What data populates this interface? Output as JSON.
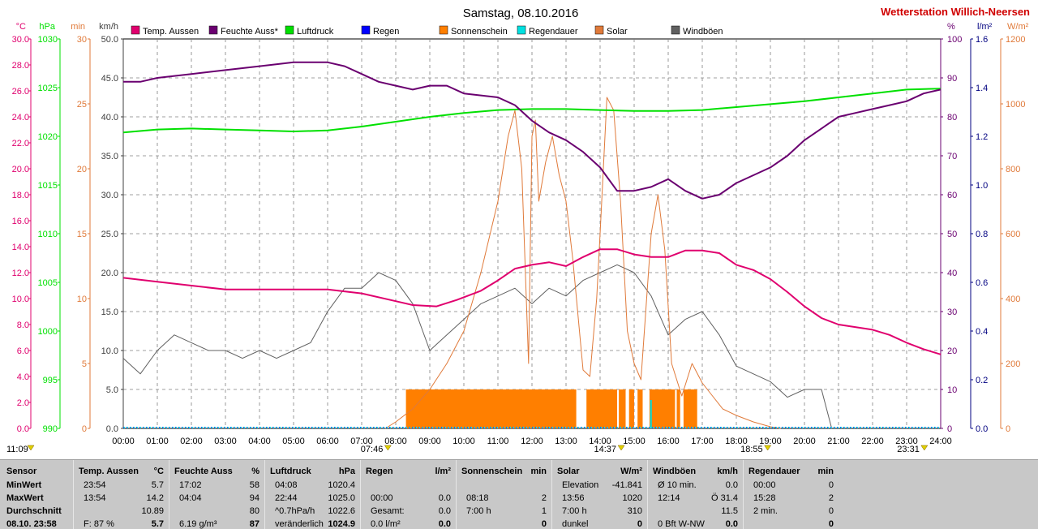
{
  "header": {
    "title": "Samstag, 08.10.2016",
    "station": "Wetterstation Willich-Neersen"
  },
  "colors": {
    "temp": "#e0006e",
    "humidity": "#6a0070",
    "pressure": "#00e000",
    "rain": "#0000ff",
    "sunshine": "#ff7f00",
    "raintime": "#00e0e0",
    "solar": "#e07a3a",
    "gust": "#606060",
    "grid": "#808080",
    "table_bg": "#c8c8c8"
  },
  "chart_data": {
    "type": "line",
    "x_range": [
      "00:00",
      "24:00"
    ],
    "x_ticks": [
      "00:00",
      "01:00",
      "02:00",
      "03:00",
      "04:00",
      "05:00",
      "06:00",
      "07:00",
      "08:00",
      "09:00",
      "10:00",
      "11:00",
      "12:00",
      "13:00",
      "14:00",
      "15:00",
      "16:00",
      "17:00",
      "18:00",
      "19:00",
      "20:00",
      "21:00",
      "22:00",
      "23:00",
      "24:00"
    ],
    "axes_left": [
      {
        "unit": "°C",
        "min": 0,
        "max": 30,
        "ticks": [
          "30.0",
          "28.0",
          "26.0",
          "24.0",
          "22.0",
          "20.0",
          "18.0",
          "16.0",
          "14.0",
          "12.0",
          "10.0",
          "8.0",
          "6.0",
          "4.0",
          "2.0",
          "0.0"
        ]
      },
      {
        "unit": "hPa",
        "min": 990,
        "max": 1030,
        "ticks": [
          "1030",
          "1025",
          "1020",
          "1015",
          "1010",
          "1005",
          "1000",
          "995",
          "990"
        ]
      },
      {
        "unit": "min",
        "min": 0,
        "max": 30,
        "ticks": [
          "30",
          "25",
          "20",
          "15",
          "10",
          "5",
          "0"
        ]
      },
      {
        "unit": "km/h",
        "min": 0,
        "max": 50,
        "ticks": [
          "50.0",
          "45.0",
          "40.0",
          "35.0",
          "30.0",
          "25.0",
          "20.0",
          "15.0",
          "10.0",
          "5.0",
          "0.0"
        ]
      }
    ],
    "axes_right": [
      {
        "unit": "%",
        "min": 0,
        "max": 100,
        "ticks": [
          "100",
          "90",
          "80",
          "70",
          "60",
          "50",
          "40",
          "30",
          "20",
          "10",
          "0"
        ]
      },
      {
        "unit": "l/m²",
        "min": 0,
        "max": 1.6,
        "ticks": [
          "1.6",
          "1.4",
          "1.2",
          "1.0",
          "0.8",
          "0.6",
          "0.4",
          "0.2",
          "0.0"
        ]
      },
      {
        "unit": "W/m²",
        "min": 0,
        "max": 1200,
        "ticks": [
          "1200",
          "1000",
          "800",
          "600",
          "400",
          "200",
          "0"
        ]
      }
    ],
    "legend": [
      "Temp. Aussen",
      "Feuchte Auss*",
      "Luftdruck",
      "Regen",
      "Sonnenschein",
      "Regendauer",
      "Solar",
      "Windböen"
    ],
    "series": [
      {
        "name": "Temp. Aussen",
        "unit": "°C",
        "points": [
          [
            0,
            11.6
          ],
          [
            1,
            11.3
          ],
          [
            2,
            11.0
          ],
          [
            3,
            10.7
          ],
          [
            4,
            10.7
          ],
          [
            5,
            10.7
          ],
          [
            6,
            10.7
          ],
          [
            7,
            10.4
          ],
          [
            8,
            9.8
          ],
          [
            8.5,
            9.5
          ],
          [
            9.2,
            9.4
          ],
          [
            9.8,
            9.9
          ],
          [
            10.5,
            10.6
          ],
          [
            11,
            11.4
          ],
          [
            11.5,
            12.3
          ],
          [
            12,
            12.6
          ],
          [
            12.5,
            12.8
          ],
          [
            13,
            12.5
          ],
          [
            13.5,
            13.2
          ],
          [
            14,
            13.8
          ],
          [
            14.5,
            13.8
          ],
          [
            15,
            13.4
          ],
          [
            15.5,
            13.2
          ],
          [
            16,
            13.2
          ],
          [
            16.5,
            13.7
          ],
          [
            17,
            13.7
          ],
          [
            17.5,
            13.5
          ],
          [
            18,
            12.6
          ],
          [
            18.5,
            12.2
          ],
          [
            19,
            11.5
          ],
          [
            19.5,
            10.5
          ],
          [
            20,
            9.4
          ],
          [
            20.5,
            8.5
          ],
          [
            21,
            8.0
          ],
          [
            22,
            7.6
          ],
          [
            22.5,
            7.2
          ],
          [
            23,
            6.6
          ],
          [
            23.5,
            6.1
          ],
          [
            24,
            5.7
          ]
        ]
      },
      {
        "name": "Feuchte Auss*",
        "unit": "%",
        "points": [
          [
            0,
            89
          ],
          [
            0.5,
            89
          ],
          [
            1,
            90
          ],
          [
            2,
            91
          ],
          [
            3,
            92
          ],
          [
            4,
            93
          ],
          [
            5,
            94
          ],
          [
            6,
            94
          ],
          [
            6.5,
            93
          ],
          [
            7,
            91
          ],
          [
            7.5,
            89
          ],
          [
            8,
            88
          ],
          [
            8.5,
            87
          ],
          [
            9,
            88
          ],
          [
            9.5,
            88
          ],
          [
            10,
            86
          ],
          [
            11,
            85
          ],
          [
            11.5,
            83
          ],
          [
            12,
            79
          ],
          [
            12.5,
            76
          ],
          [
            13,
            74
          ],
          [
            13.5,
            71
          ],
          [
            14,
            67
          ],
          [
            14.5,
            61
          ],
          [
            15,
            61
          ],
          [
            15.5,
            62
          ],
          [
            16,
            64
          ],
          [
            16.5,
            61
          ],
          [
            17,
            59
          ],
          [
            17.5,
            60
          ],
          [
            18,
            63
          ],
          [
            18.5,
            65
          ],
          [
            19,
            67
          ],
          [
            19.5,
            70
          ],
          [
            20,
            74
          ],
          [
            20.5,
            77
          ],
          [
            21,
            80
          ],
          [
            21.5,
            81
          ],
          [
            22,
            82
          ],
          [
            22.5,
            83
          ],
          [
            23,
            84
          ],
          [
            23.5,
            86
          ],
          [
            24,
            87
          ]
        ]
      },
      {
        "name": "Luftdruck",
        "unit": "hPa",
        "points": [
          [
            0,
            1020.4
          ],
          [
            1,
            1020.7
          ],
          [
            2,
            1020.8
          ],
          [
            3,
            1020.7
          ],
          [
            4,
            1020.6
          ],
          [
            5,
            1020.5
          ],
          [
            6,
            1020.6
          ],
          [
            7,
            1021.0
          ],
          [
            8,
            1021.5
          ],
          [
            9,
            1022.0
          ],
          [
            10,
            1022.4
          ],
          [
            11,
            1022.7
          ],
          [
            12,
            1022.8
          ],
          [
            13,
            1022.8
          ],
          [
            14,
            1022.7
          ],
          [
            15,
            1022.6
          ],
          [
            16,
            1022.6
          ],
          [
            17,
            1022.7
          ],
          [
            18,
            1023.0
          ],
          [
            19,
            1023.3
          ],
          [
            20,
            1023.6
          ],
          [
            21,
            1024.0
          ],
          [
            22,
            1024.4
          ],
          [
            23,
            1024.8
          ],
          [
            24,
            1024.9
          ]
        ]
      },
      {
        "name": "Solar",
        "unit": "W/m²",
        "points": [
          [
            7.7,
            0
          ],
          [
            8.0,
            20
          ],
          [
            8.5,
            60
          ],
          [
            9.0,
            120
          ],
          [
            9.5,
            200
          ],
          [
            10.0,
            300
          ],
          [
            10.5,
            480
          ],
          [
            11.0,
            700
          ],
          [
            11.3,
            900
          ],
          [
            11.5,
            980
          ],
          [
            11.7,
            800
          ],
          [
            11.9,
            200
          ],
          [
            12.0,
            900
          ],
          [
            12.1,
            950
          ],
          [
            12.2,
            700
          ],
          [
            12.4,
            820
          ],
          [
            12.6,
            900
          ],
          [
            12.8,
            780
          ],
          [
            13.0,
            700
          ],
          [
            13.2,
            520
          ],
          [
            13.5,
            180
          ],
          [
            13.7,
            160
          ],
          [
            13.9,
            400
          ],
          [
            14.0,
            600
          ],
          [
            14.2,
            1020
          ],
          [
            14.4,
            980
          ],
          [
            14.6,
            700
          ],
          [
            14.8,
            300
          ],
          [
            15.0,
            200
          ],
          [
            15.2,
            150
          ],
          [
            15.5,
            600
          ],
          [
            15.7,
            720
          ],
          [
            15.9,
            550
          ],
          [
            16.1,
            200
          ],
          [
            16.4,
            100
          ],
          [
            16.7,
            200
          ],
          [
            17.0,
            140
          ],
          [
            17.3,
            100
          ],
          [
            17.6,
            60
          ],
          [
            18.0,
            40
          ],
          [
            18.5,
            20
          ],
          [
            19.0,
            5
          ],
          [
            19.3,
            0
          ]
        ]
      },
      {
        "name": "Windböen",
        "unit": "km/h",
        "points": [
          [
            0,
            9
          ],
          [
            0.5,
            7
          ],
          [
            1,
            10
          ],
          [
            1.5,
            12
          ],
          [
            2,
            11
          ],
          [
            2.5,
            10
          ],
          [
            3,
            10
          ],
          [
            3.5,
            9
          ],
          [
            4,
            10
          ],
          [
            4.5,
            9
          ],
          [
            5,
            10
          ],
          [
            5.5,
            11
          ],
          [
            6,
            15
          ],
          [
            6.5,
            18
          ],
          [
            7,
            18
          ],
          [
            7.5,
            20
          ],
          [
            8,
            19
          ],
          [
            8.5,
            16
          ],
          [
            9,
            10
          ],
          [
            9.5,
            12
          ],
          [
            10,
            14
          ],
          [
            10.5,
            16
          ],
          [
            11,
            17
          ],
          [
            11.5,
            18
          ],
          [
            12,
            16
          ],
          [
            12.5,
            18
          ],
          [
            13,
            17
          ],
          [
            13.5,
            19
          ],
          [
            14,
            20
          ],
          [
            14.5,
            21
          ],
          [
            15,
            20
          ],
          [
            15.5,
            17
          ],
          [
            16,
            12
          ],
          [
            16.5,
            14
          ],
          [
            17,
            15
          ],
          [
            17.5,
            12
          ],
          [
            18,
            8
          ],
          [
            18.5,
            7
          ],
          [
            19,
            6
          ],
          [
            19.5,
            4
          ],
          [
            20,
            5
          ],
          [
            20.5,
            5
          ],
          [
            20.8,
            0
          ]
        ]
      }
    ],
    "sunshine_blocks": [
      [
        8.3,
        13.3
      ],
      [
        13.6,
        14.5
      ],
      [
        14.55,
        14.75
      ],
      [
        14.85,
        15.0
      ],
      [
        15.1,
        15.25
      ],
      [
        15.45,
        16.2
      ],
      [
        16.25,
        16.35
      ],
      [
        16.45,
        16.85
      ]
    ],
    "rain_total": 0.0,
    "markers": [
      {
        "label": "11:09",
        "x": 0,
        "pos": "left"
      },
      {
        "label": "07:46",
        "x": 7.77
      },
      {
        "label": "14:37",
        "x": 14.62
      },
      {
        "label": "18:55",
        "x": 18.92
      },
      {
        "label": "23:31",
        "x": 23.52
      }
    ]
  },
  "table": {
    "sensor": {
      "header": "Sensor",
      "rows": [
        "MinWert",
        "MaxWert",
        "Durchschnitt",
        "08.10. 23:58"
      ]
    },
    "temp": {
      "header": "Temp. Aussen",
      "unit": "°C",
      "rows": [
        [
          "23:54",
          "5.7"
        ],
        [
          "13:54",
          "14.2"
        ],
        [
          "",
          "10.89"
        ],
        [
          "F: 87 %",
          "5.7"
        ]
      ]
    },
    "humidity": {
      "header": "Feuchte Auss",
      "unit": "%",
      "rows": [
        [
          "17:02",
          "58"
        ],
        [
          "04:04",
          "94"
        ],
        [
          "",
          "80"
        ],
        [
          "6.19 g/m³",
          "87"
        ]
      ]
    },
    "pressure": {
      "header": "Luftdruck",
      "unit": "hPa",
      "rows": [
        [
          "04:08",
          "1020.4"
        ],
        [
          "22:44",
          "1025.0"
        ],
        [
          "^0.7hPa/h",
          "1022.6"
        ],
        [
          "veränderlich",
          "1024.9"
        ]
      ]
    },
    "rain": {
      "header": "Regen",
      "unit": "l/m²",
      "rows": [
        [
          "",
          ""
        ],
        [
          "00:00",
          "0.0"
        ],
        [
          "Gesamt:",
          "0.0"
        ],
        [
          "0.0 l/m²",
          "0.0"
        ]
      ]
    },
    "sunshine": {
      "header": "Sonnenschein",
      "unit": "min",
      "rows": [
        [
          "",
          ""
        ],
        [
          "08:18",
          "2"
        ],
        [
          "7:00 h",
          "1"
        ],
        [
          "",
          "0"
        ]
      ]
    },
    "solar": {
      "header": "Solar",
      "unit": "W/m²",
      "rows": [
        [
          "Elevation",
          "-41.841"
        ],
        [
          "13:56",
          "1020"
        ],
        [
          "7:00 h",
          "310"
        ],
        [
          "dunkel",
          "0"
        ]
      ]
    },
    "wind": {
      "header": "Windböen",
      "unit": "km/h",
      "rows": [
        [
          "Ø 10 min.",
          "0.0"
        ],
        [
          "12:14",
          "Ö 31.4"
        ],
        [
          "",
          "11.5"
        ],
        [
          "0 Bft W-NW",
          "0.0"
        ]
      ]
    },
    "raintime": {
      "header": "Regendauer",
      "unit": "min",
      "rows": [
        [
          "00:00",
          "0"
        ],
        [
          "15:28",
          "2"
        ],
        [
          "2 min.",
          "0"
        ],
        [
          "",
          "0"
        ]
      ]
    }
  }
}
